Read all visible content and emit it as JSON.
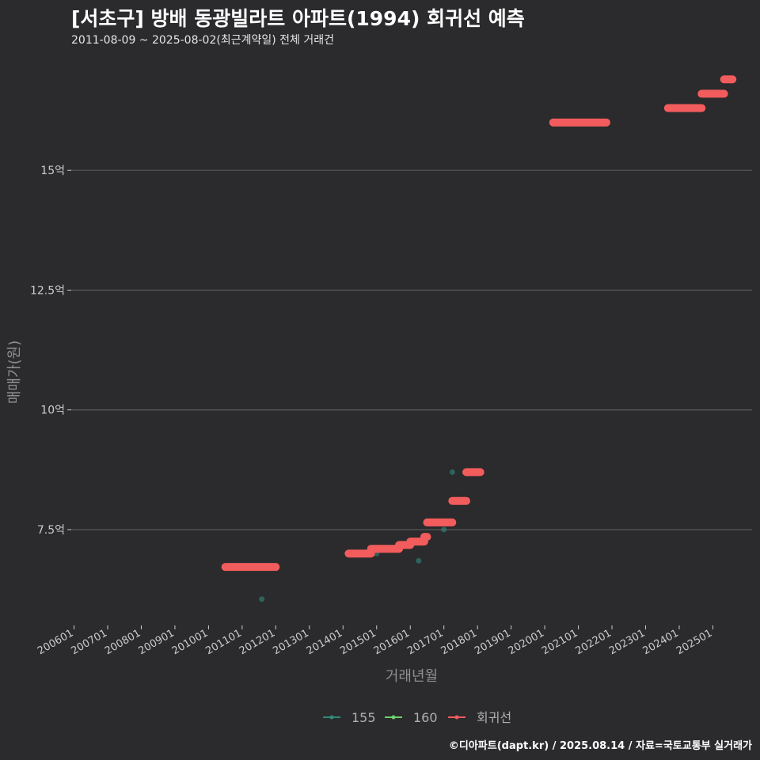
{
  "title": "[서초구] 방배 동광빌라트 아파트(1994) 회귀선 예측",
  "subtitle": "2011-08-09 ~ 2025-08-02(최근계약일) 전체 거래건",
  "caption": "©디아파트(dapt.kr) / 2025.08.14 / 자료=국토교통부 실거래가",
  "colors": {
    "background": "#2b2a2c",
    "grid": "#5a5a5a",
    "axis_text": "#cccccc",
    "series_155": "#2e8b7a",
    "series_160": "#6fd16f",
    "regression": "#f25c5c"
  },
  "chart_data": {
    "type": "scatter",
    "xlabel": "거래년월",
    "ylabel": "매매가(원)",
    "x_ticks": [
      "200601",
      "200701",
      "200801",
      "200901",
      "201001",
      "201101",
      "201201",
      "201301",
      "201401",
      "201501",
      "201601",
      "201701",
      "201801",
      "201901",
      "202001",
      "202101",
      "202201",
      "202301",
      "202401",
      "202501"
    ],
    "y_ticks": [
      {
        "value": 7.5,
        "label": "7.5억"
      },
      {
        "value": 10,
        "label": "10억"
      },
      {
        "value": 12.5,
        "label": "12.5억"
      },
      {
        "value": 15,
        "label": "15억"
      }
    ],
    "xlim": [
      "2005-12",
      "2026-03"
    ],
    "ylim": [
      5.5,
      17.4
    ],
    "legend_position": "bottom",
    "series": [
      {
        "name": "155",
        "kind": "points",
        "points": [
          {
            "x": "2011-08",
            "y": 6.05
          },
          {
            "x": "2015-01",
            "y": 7.0
          },
          {
            "x": "2016-04",
            "y": 6.85
          },
          {
            "x": "2017-01",
            "y": 7.5
          },
          {
            "x": "2017-04",
            "y": 8.7
          }
        ]
      },
      {
        "name": "160",
        "kind": "points",
        "points": []
      },
      {
        "name": "회귀선",
        "kind": "steps",
        "segments": [
          {
            "x0": "2010-07",
            "x1": "2012-01",
            "y": 6.72
          },
          {
            "x0": "2014-03",
            "x1": "2014-11",
            "y": 7.0
          },
          {
            "x0": "2014-11",
            "x1": "2015-09",
            "y": 7.1
          },
          {
            "x0": "2015-09",
            "x1": "2016-01",
            "y": 7.18
          },
          {
            "x0": "2016-01",
            "x1": "2016-06",
            "y": 7.25
          },
          {
            "x0": "2016-06",
            "x1": "2016-07",
            "y": 7.35
          },
          {
            "x0": "2016-07",
            "x1": "2017-04",
            "y": 7.65
          },
          {
            "x0": "2017-04",
            "x1": "2017-09",
            "y": 8.1
          },
          {
            "x0": "2017-09",
            "x1": "2018-02",
            "y": 8.7
          },
          {
            "x0": "2020-04",
            "x1": "2021-11",
            "y": 16.0
          },
          {
            "x0": "2023-09",
            "x1": "2024-09",
            "y": 16.3
          },
          {
            "x0": "2024-09",
            "x1": "2025-05",
            "y": 16.6
          },
          {
            "x0": "2025-05",
            "x1": "2025-08",
            "y": 16.9
          }
        ]
      }
    ]
  }
}
